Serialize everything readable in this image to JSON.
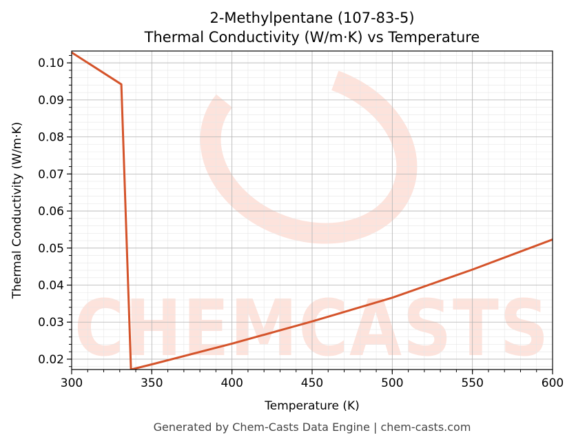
{
  "chart_data": {
    "type": "line",
    "title": "2-Methylpentane (107-83-5)",
    "subtitle": "Thermal Conductivity (W/m·K) vs Temperature",
    "xlabel": "Temperature (K)",
    "ylabel": "Thermal Conductivity (W/m·K)",
    "xlim": [
      300,
      600
    ],
    "ylim": [
      0.0172,
      0.1032
    ],
    "xticks": [
      300,
      350,
      400,
      450,
      500,
      550,
      600
    ],
    "yticks": [
      0.02,
      0.03,
      0.04,
      0.05,
      0.06,
      0.07,
      0.08,
      0.09,
      0.1
    ],
    "ytick_labels": [
      "0.02",
      "0.03",
      "0.04",
      "0.05",
      "0.06",
      "0.07",
      "0.08",
      "0.09",
      "0.10"
    ],
    "grid": true,
    "line_color": "#d4532a",
    "series": [
      {
        "x": [
          300,
          331,
          337,
          350,
          400,
          450,
          500,
          550,
          600
        ],
        "y": [
          0.1028,
          0.0942,
          0.0172,
          0.0186,
          0.0242,
          0.0302,
          0.0366,
          0.0442,
          0.0523
        ]
      }
    ]
  },
  "footer": "Generated by Chem-Casts Data Engine | chem-casts.com",
  "watermark": {
    "text": "CHEMCASTS",
    "color": "#fde3dc"
  }
}
